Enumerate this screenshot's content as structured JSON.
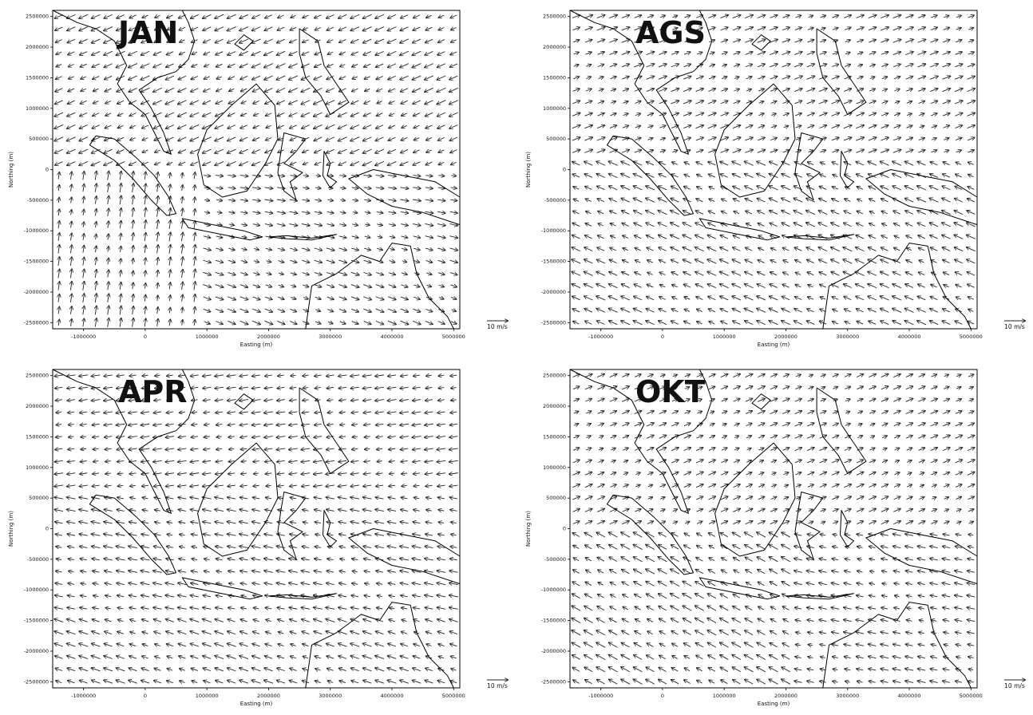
{
  "figure": {
    "x_axis_label": "Easting (m)",
    "y_axis_label": "Northing (m)",
    "x_ticks": [
      -1000000,
      0,
      1000000,
      2000000,
      3000000,
      4000000,
      5000000
    ],
    "x_tick_labels": [
      "-1000000",
      "0",
      "1000000",
      "2000000",
      "3000000",
      "4000000",
      "5000000"
    ],
    "y_ticks": [
      2500000,
      2000000,
      1500000,
      1000000,
      500000,
      0,
      -500000,
      -1000000,
      -1500000,
      -2000000,
      -2500000
    ],
    "y_tick_labels": [
      "2500000",
      "2000000",
      "1500000",
      "1000000",
      "500000",
      "0",
      "-500000",
      "-1000000",
      "-1500000",
      "-2000000",
      "-2500000"
    ],
    "x_range": [
      -1500000,
      5100000
    ],
    "y_range": [
      -2600000,
      2600000
    ],
    "reference_vector_label": "10 m/s",
    "reference_speed": 10
  },
  "panels": [
    {
      "id": "jan",
      "label": "JAN",
      "regime": "northwest"
    },
    {
      "id": "ags",
      "label": "AGS",
      "regime": "southeast"
    },
    {
      "id": "apr",
      "label": "APR",
      "regime": "transition-spring"
    },
    {
      "id": "okt",
      "label": "OKT",
      "regime": "transition-autumn"
    }
  ],
  "colors": {
    "vector": "#222222",
    "coastline": "#000000",
    "background": "#ffffff"
  }
}
